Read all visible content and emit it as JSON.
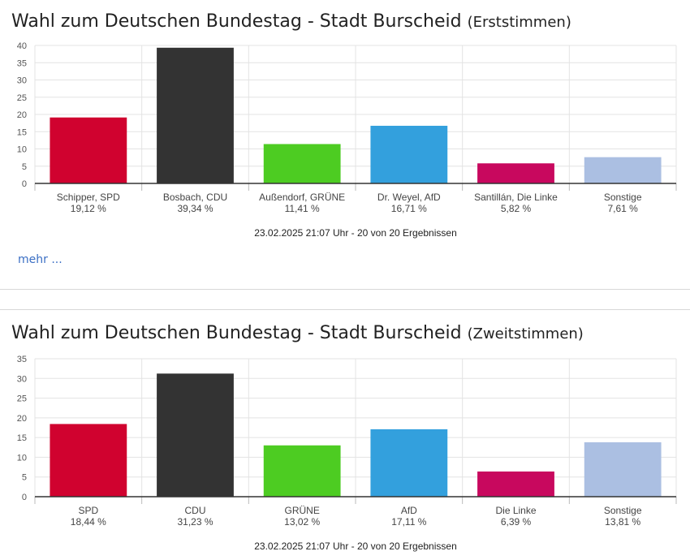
{
  "section1": {
    "title": "Wahl zum Deutschen Bundestag - Stadt Burscheid",
    "subtitle": "(Erststimmen)",
    "more_link": "mehr ..."
  },
  "section2": {
    "title": "Wahl zum Deutschen Bundestag - Stadt Burscheid",
    "subtitle": "(Zweitstimmen)"
  },
  "chart_data": [
    {
      "type": "bar",
      "title": "Wahl zum Deutschen Bundestag - Stadt Burscheid (Erststimmen)",
      "categories": [
        "Schipper, SPD",
        "Bosbach, CDU",
        "Außendorf, GRÜNE",
        "Dr. Weyel, AfD",
        "Santillán, Die Linke",
        "Sonstige"
      ],
      "values": [
        19.12,
        39.34,
        11.41,
        16.71,
        5.82,
        7.61
      ],
      "value_labels": [
        "19,12 %",
        "39,34 %",
        "11,41 %",
        "16,71 %",
        "5,82 %",
        "7,61 %"
      ],
      "colors": [
        "#d0022f",
        "#333333",
        "#4dcc22",
        "#33a0dd",
        "#c8085e",
        "#abbfe2"
      ],
      "ylim": [
        0,
        40
      ],
      "yticks": [
        0,
        5,
        10,
        15,
        20,
        25,
        30,
        35,
        40
      ],
      "grid": true,
      "footer": "23.02.2025 21:07 Uhr - 20 von 20 Ergebnissen"
    },
    {
      "type": "bar",
      "title": "Wahl zum Deutschen Bundestag - Stadt Burscheid (Zweitstimmen)",
      "categories": [
        "SPD",
        "CDU",
        "GRÜNE",
        "AfD",
        "Die Linke",
        "Sonstige"
      ],
      "values": [
        18.44,
        31.23,
        13.02,
        17.11,
        6.39,
        13.81
      ],
      "value_labels": [
        "18,44 %",
        "31,23 %",
        "13,02 %",
        "17,11 %",
        "6,39 %",
        "13,81 %"
      ],
      "colors": [
        "#d0022f",
        "#333333",
        "#4dcc22",
        "#33a0dd",
        "#c8085e",
        "#abbfe2"
      ],
      "ylim": [
        0,
        35
      ],
      "yticks": [
        0,
        5,
        10,
        15,
        20,
        25,
        30,
        35
      ],
      "grid": true,
      "footer": "23.02.2025 21:07 Uhr - 20 von 20 Ergebnissen"
    }
  ]
}
